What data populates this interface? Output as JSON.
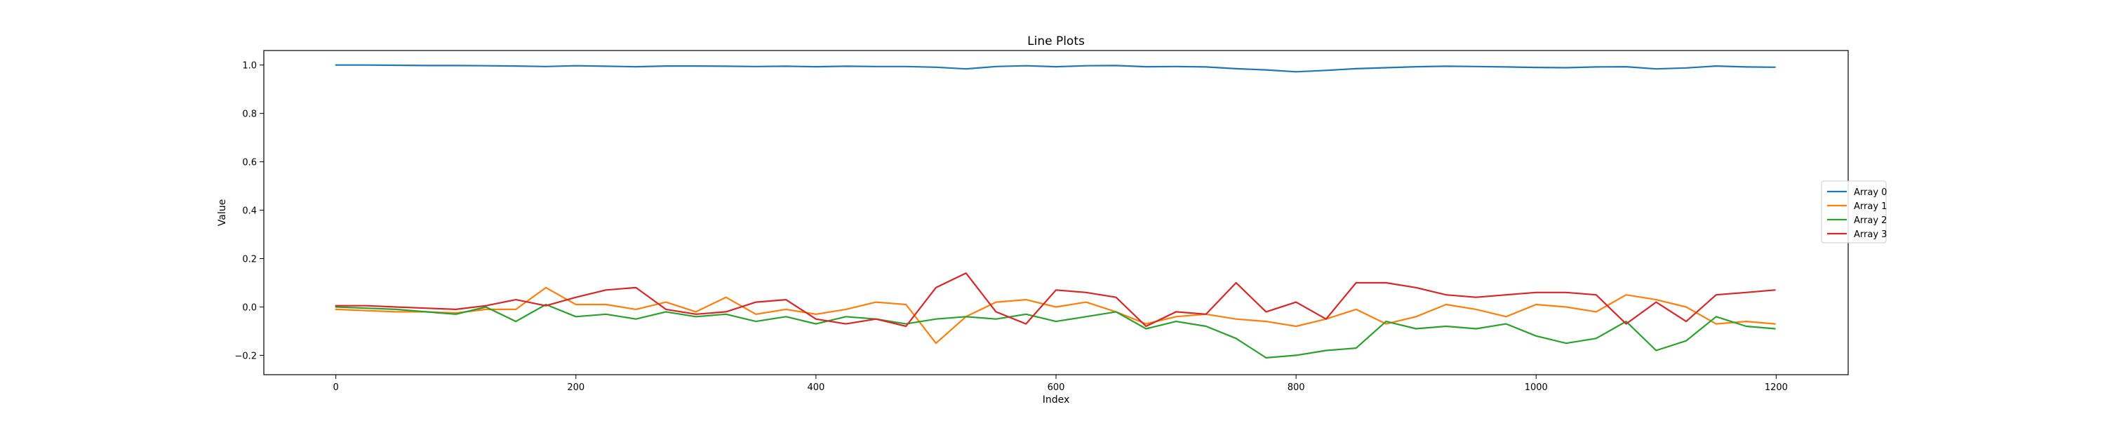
{
  "chart_data": {
    "type": "line",
    "title": "Line Plots",
    "xlabel": "Index",
    "ylabel": "Value",
    "xlim": [
      -60,
      1260
    ],
    "ylim": [
      -0.28,
      1.06
    ],
    "grid": false,
    "legend_placement": "center-right",
    "x_ticks": [
      0,
      200,
      400,
      600,
      800,
      1000,
      1200
    ],
    "y_ticks": [
      -0.2,
      0.0,
      0.2,
      0.4,
      0.6,
      0.8,
      1.0
    ],
    "x_tick_labels": [
      "0",
      "200",
      "400",
      "600",
      "800",
      "1000",
      "1200"
    ],
    "y_tick_labels": [
      "−0.2",
      "0.0",
      "0.2",
      "0.4",
      "0.6",
      "0.8",
      "1.0"
    ],
    "x": [
      0,
      25,
      50,
      75,
      100,
      125,
      150,
      175,
      200,
      225,
      250,
      275,
      300,
      325,
      350,
      375,
      400,
      425,
      450,
      475,
      500,
      525,
      550,
      575,
      600,
      625,
      650,
      675,
      700,
      725,
      750,
      775,
      800,
      825,
      850,
      875,
      900,
      925,
      950,
      975,
      1000,
      1025,
      1050,
      1075,
      1100,
      1125,
      1150,
      1175,
      1199
    ],
    "series": [
      {
        "name": "Array 0",
        "color": "#1f77b4",
        "values": [
          1.0,
          1.0,
          0.999,
          0.998,
          0.998,
          0.997,
          0.996,
          0.994,
          0.997,
          0.995,
          0.993,
          0.996,
          0.996,
          0.995,
          0.994,
          0.995,
          0.993,
          0.995,
          0.994,
          0.994,
          0.991,
          0.984,
          0.994,
          0.997,
          0.993,
          0.997,
          0.998,
          0.993,
          0.994,
          0.992,
          0.985,
          0.98,
          0.972,
          0.978,
          0.985,
          0.989,
          0.993,
          0.995,
          0.994,
          0.992,
          0.99,
          0.989,
          0.992,
          0.993,
          0.984,
          0.988,
          0.996,
          0.992,
          0.991
        ]
      },
      {
        "name": "Array 1",
        "color": "#ff7f0e",
        "values": [
          -0.01,
          -0.015,
          -0.02,
          -0.02,
          -0.025,
          -0.01,
          -0.01,
          0.08,
          0.01,
          0.01,
          -0.01,
          0.02,
          -0.02,
          0.04,
          -0.03,
          -0.01,
          -0.03,
          -0.01,
          0.02,
          0.01,
          -0.15,
          -0.04,
          0.02,
          0.03,
          0.0,
          0.02,
          -0.02,
          -0.07,
          -0.04,
          -0.03,
          -0.05,
          -0.06,
          -0.08,
          -0.05,
          -0.01,
          -0.07,
          -0.04,
          0.01,
          -0.01,
          -0.04,
          0.01,
          0.0,
          -0.02,
          0.05,
          0.03,
          0.0,
          -0.07,
          -0.06,
          -0.07
        ]
      },
      {
        "name": "Array 2",
        "color": "#2ca02c",
        "values": [
          0.0,
          -0.005,
          -0.01,
          -0.02,
          -0.03,
          0.0,
          -0.06,
          0.01,
          -0.04,
          -0.03,
          -0.05,
          -0.02,
          -0.04,
          -0.03,
          -0.06,
          -0.04,
          -0.07,
          -0.04,
          -0.05,
          -0.07,
          -0.05,
          -0.04,
          -0.05,
          -0.03,
          -0.06,
          -0.04,
          -0.02,
          -0.09,
          -0.06,
          -0.08,
          -0.13,
          -0.21,
          -0.2,
          -0.18,
          -0.17,
          -0.06,
          -0.09,
          -0.08,
          -0.09,
          -0.07,
          -0.12,
          -0.15,
          -0.13,
          -0.06,
          -0.18,
          -0.14,
          -0.04,
          -0.08,
          -0.09
        ]
      },
      {
        "name": "Array 3",
        "color": "#d62728",
        "values": [
          0.005,
          0.005,
          0.0,
          -0.005,
          -0.01,
          0.005,
          0.03,
          0.005,
          0.04,
          0.07,
          0.08,
          -0.01,
          -0.03,
          -0.02,
          0.02,
          0.03,
          -0.05,
          -0.07,
          -0.05,
          -0.08,
          0.08,
          0.14,
          -0.02,
          -0.07,
          0.07,
          0.06,
          0.04,
          -0.08,
          -0.02,
          -0.03,
          0.1,
          -0.02,
          0.02,
          -0.05,
          0.1,
          0.1,
          0.08,
          0.05,
          0.04,
          0.05,
          0.06,
          0.06,
          0.05,
          -0.07,
          0.02,
          -0.06,
          0.05,
          0.06,
          0.07
        ]
      }
    ]
  }
}
